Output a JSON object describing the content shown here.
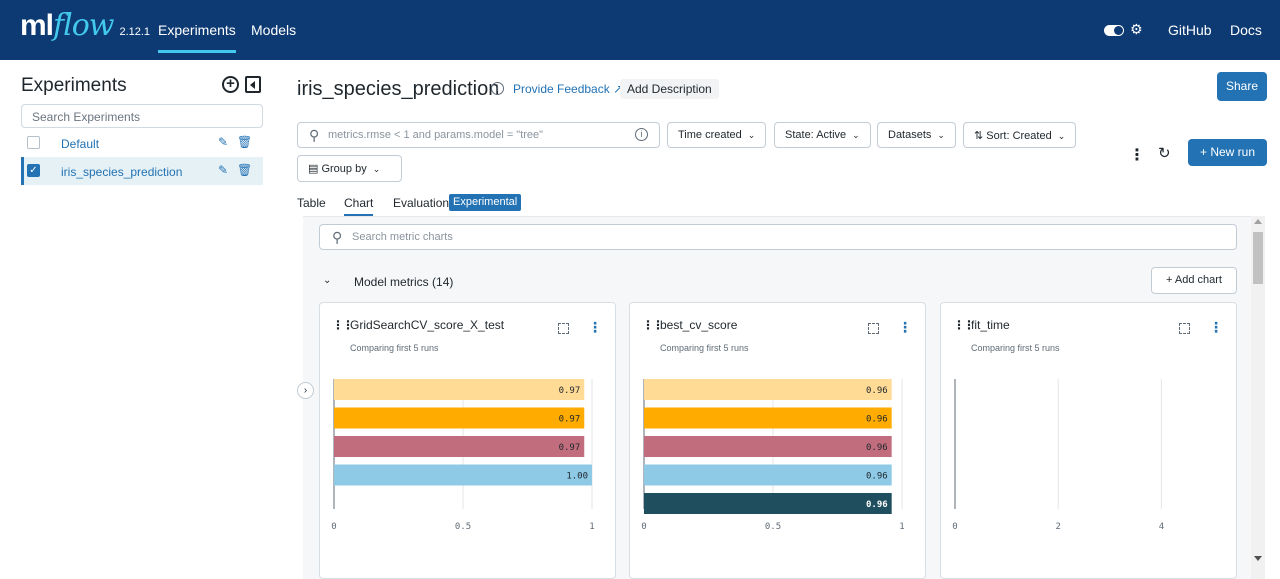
{
  "header": {
    "logo_ml": "ml",
    "logo_flow": "flow",
    "version": "2.12.1",
    "nav": [
      "Experiments",
      "Models"
    ],
    "github": "GitHub",
    "docs": "Docs"
  },
  "sidebar": {
    "title": "Experiments",
    "search_placeholder": "Search Experiments",
    "items": [
      {
        "label": "Default",
        "checked": false
      },
      {
        "label": "iris_species_prediction",
        "checked": true
      }
    ]
  },
  "main": {
    "title": "iris_species_prediction",
    "feedback": "Provide Feedback",
    "add_description": "Add Description",
    "share": "Share",
    "search_placeholder": "metrics.rmse < 1 and params.model = \"tree\"",
    "filters": [
      "Time created",
      "State: Active",
      "Datasets",
      "Sort: Created"
    ],
    "group_by": "Group by",
    "new_run": "New run",
    "tabs": [
      "Table",
      "Chart",
      "Evaluation"
    ],
    "experimental_badge": "Experimental"
  },
  "charts_view": {
    "search_placeholder": "Search metric charts",
    "section_title": "Model metrics (14)",
    "add_chart": "Add chart"
  },
  "colors": {
    "header_bg": "#0e3a73",
    "accent": "#2272b4",
    "run_colors": [
      "#ffdb96",
      "#ffab00",
      "#c26d7e",
      "#8ecae6",
      "#1f4e5f"
    ]
  },
  "chart_data": [
    {
      "type": "bar",
      "orientation": "horizontal",
      "title": "GridSearchCV_score_X_test",
      "subtitle": "Comparing first 5 runs",
      "values": [
        0.97,
        0.97,
        0.97,
        1.0
      ],
      "labels": [
        "0.97",
        "0.97",
        "0.97",
        "1.00"
      ],
      "xlim": [
        0,
        1
      ],
      "xticks": [
        "0",
        "0.5",
        "1"
      ]
    },
    {
      "type": "bar",
      "orientation": "horizontal",
      "title": "best_cv_score",
      "subtitle": "Comparing first 5 runs",
      "values": [
        0.96,
        0.96,
        0.96,
        0.96,
        0.96
      ],
      "labels": [
        "0.96",
        "0.96",
        "0.96",
        "0.96",
        "0.96"
      ],
      "xlim": [
        0,
        1
      ],
      "xticks": [
        "0",
        "0.5",
        "1"
      ]
    },
    {
      "type": "bar",
      "orientation": "horizontal",
      "title": "fit_time",
      "subtitle": "Comparing first 5 runs",
      "values": [],
      "labels": [],
      "xlim": [
        0,
        5
      ],
      "xticks": [
        "0",
        "2",
        "4"
      ]
    }
  ]
}
